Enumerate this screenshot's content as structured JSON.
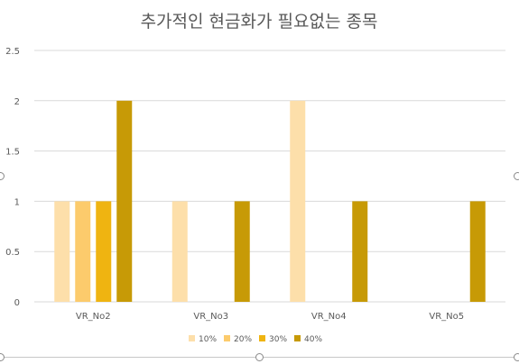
{
  "chart_data": {
    "type": "bar",
    "title": "추가적인 현금화가 필요없는 종목",
    "xlabel": "",
    "ylabel": "",
    "categories": [
      "VR_No2",
      "VR_No3",
      "VR_No4",
      "VR_No5"
    ],
    "series": [
      {
        "name": "10%",
        "color": "#FDDFAA",
        "values": [
          1,
          1,
          2,
          0
        ]
      },
      {
        "name": "20%",
        "color": "#FCCB6C",
        "values": [
          1,
          0,
          0,
          0
        ]
      },
      {
        "name": "30%",
        "color": "#EFB411",
        "values": [
          1,
          0,
          0,
          0
        ]
      },
      {
        "name": "40%",
        "color": "#C79A06",
        "values": [
          2,
          1,
          1,
          1
        ]
      }
    ],
    "ylim": [
      0,
      2.5
    ],
    "yticks": [
      "0",
      "0.5",
      "1",
      "1.5",
      "2",
      "2.5"
    ],
    "grid": true,
    "legend_position": "bottom"
  }
}
